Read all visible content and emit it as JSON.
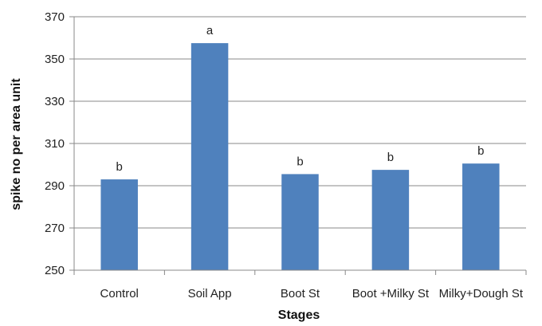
{
  "chart_data": {
    "type": "bar",
    "title": "",
    "xlabel": "Stages",
    "ylabel": "spike no per area unit",
    "categories": [
      "Control",
      "Soil App",
      "Boot St",
      "Boot +Milky St",
      "Milky+Dough St"
    ],
    "values": [
      293,
      357.5,
      295.5,
      297.5,
      300.5
    ],
    "data_labels": [
      "b",
      "a",
      "b",
      "b",
      "b"
    ],
    "ylim": [
      250,
      370
    ],
    "yticks": [
      250,
      270,
      290,
      310,
      330,
      350,
      370
    ],
    "grid": true,
    "legend": "none",
    "colors": {
      "bar": "#4f81bd",
      "grid": "#888888",
      "axis": "#888888"
    }
  }
}
